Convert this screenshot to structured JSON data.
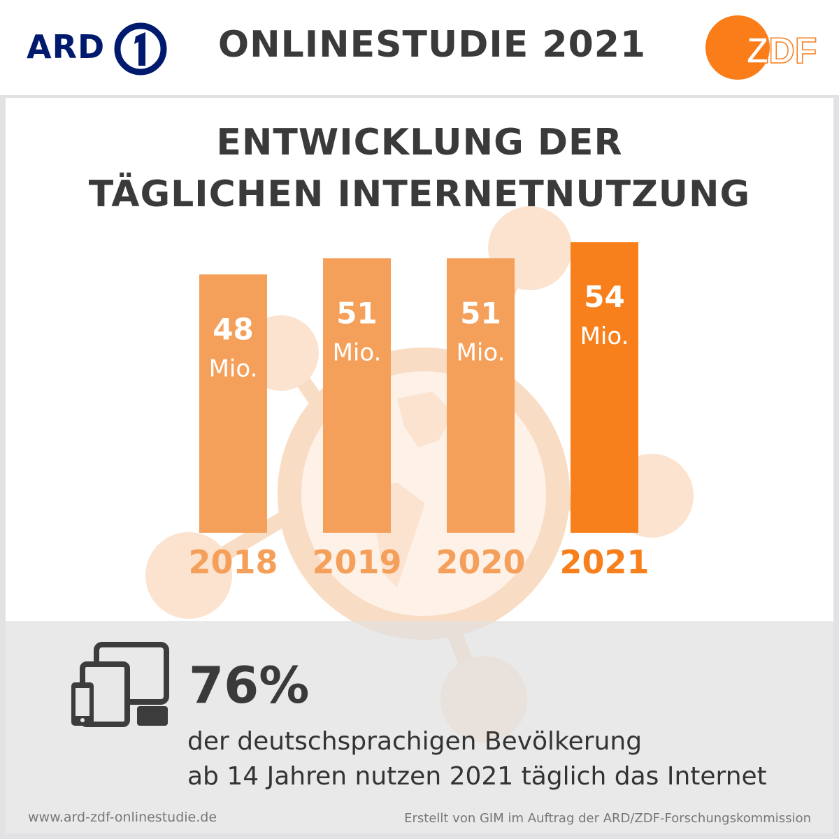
{
  "header": {
    "title": "ONLINESTUDIE 2021",
    "ard_logo_text": "ARD",
    "zdf_logo_text": "ZDF"
  },
  "colors": {
    "bar": "#f5a05a",
    "bar_highlight": "#f7801d",
    "year_label": "#f5a05a",
    "year_label_highlight": "#f7801d",
    "ard_blue": "#001a6e",
    "zdf_orange": "#fa7d19"
  },
  "chart_data": {
    "type": "bar",
    "title": [
      "ENTWICKLUNG DER",
      "TÄGLICHEN INTERNETNUTZUNG"
    ],
    "categories": [
      "2018",
      "2019",
      "2020",
      "2021"
    ],
    "values": [
      48,
      51,
      51,
      54
    ],
    "value_labels": [
      "48",
      "51",
      "51",
      "54"
    ],
    "unit": "Mio.",
    "highlight_index": 3,
    "xlabel": "",
    "ylabel": "",
    "grid": false
  },
  "stat": {
    "value": "76%",
    "line1": "der deutschsprachigen Bevölkerung",
    "line2": "ab 14 Jahren nutzen 2021 täglich das Internet",
    "icon": "devices-icon"
  },
  "footer": {
    "left": "www.ard-zdf-onlinestudie.de",
    "right": "Erstellt von GIM im Auftrag der ARD/ZDF-Forschungskommission"
  }
}
